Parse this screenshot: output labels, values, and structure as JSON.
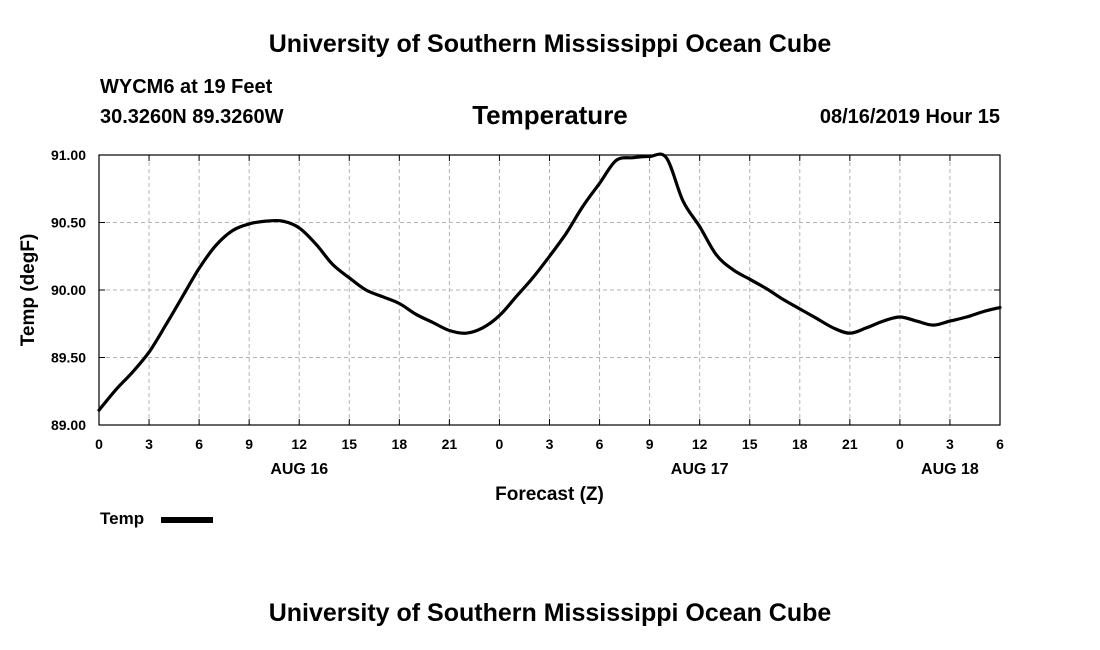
{
  "header": {
    "org_title": "University of Southern Mississippi Ocean Cube",
    "station": "WYCM6 at 19 Feet",
    "coords": "30.3260N 89.3260W",
    "variable": "Temperature",
    "datetime": "08/16/2019 Hour 15"
  },
  "footer": {
    "org_title": "University of Southern Mississippi Ocean Cube"
  },
  "legend": {
    "label": "Temp"
  },
  "chart_data": {
    "type": "line",
    "title": "Temperature",
    "xlabel": "Forecast (Z)",
    "ylabel": "Temp (degF)",
    "ylim": [
      89.0,
      91.0
    ],
    "xlim": [
      0,
      54
    ],
    "grid": true,
    "x_ticks": [
      0,
      3,
      6,
      9,
      12,
      15,
      18,
      21,
      24,
      27,
      30,
      33,
      36,
      39,
      42,
      45,
      48,
      51,
      54
    ],
    "x_tick_labels": [
      "0",
      "3",
      "6",
      "9",
      "12",
      "15",
      "18",
      "21",
      "0",
      "3",
      "6",
      "9",
      "12",
      "15",
      "18",
      "21",
      "0",
      "3",
      "6"
    ],
    "y_ticks": [
      89.0,
      89.5,
      90.0,
      90.5,
      91.0
    ],
    "y_tick_labels": [
      "89.00",
      "89.50",
      "90.00",
      "90.50",
      "91.00"
    ],
    "day_labels": [
      {
        "label": "AUG 16",
        "x": 12
      },
      {
        "label": "AUG 17",
        "x": 36
      },
      {
        "label": "AUG 18",
        "x": 51
      }
    ],
    "series": [
      {
        "name": "Temp",
        "color": "#000000",
        "x": [
          0,
          1,
          2,
          3,
          4,
          5,
          6,
          7,
          8,
          9,
          10,
          11,
          12,
          13,
          14,
          15,
          16,
          17,
          18,
          19,
          20,
          21,
          22,
          23,
          24,
          25,
          26,
          27,
          28,
          29,
          30,
          31,
          32,
          33,
          34,
          35,
          36,
          37,
          38,
          39,
          40,
          41,
          42,
          43,
          44,
          45,
          46,
          47,
          48,
          49,
          50,
          51,
          52,
          53,
          54
        ],
        "values": [
          89.11,
          89.26,
          89.39,
          89.54,
          89.74,
          89.95,
          90.16,
          90.33,
          90.44,
          90.49,
          90.51,
          90.51,
          90.46,
          90.34,
          90.19,
          90.09,
          90.0,
          89.95,
          89.9,
          89.82,
          89.76,
          89.7,
          89.68,
          89.72,
          89.81,
          89.95,
          90.09,
          90.25,
          90.42,
          90.62,
          90.79,
          90.96,
          90.98,
          90.99,
          90.98,
          90.66,
          90.47,
          90.26,
          90.15,
          90.08,
          90.01,
          89.93,
          89.86,
          89.79,
          89.72,
          89.68,
          89.72,
          89.77,
          89.8,
          89.77,
          89.74,
          89.77,
          89.8,
          89.84,
          89.87
        ]
      }
    ]
  }
}
